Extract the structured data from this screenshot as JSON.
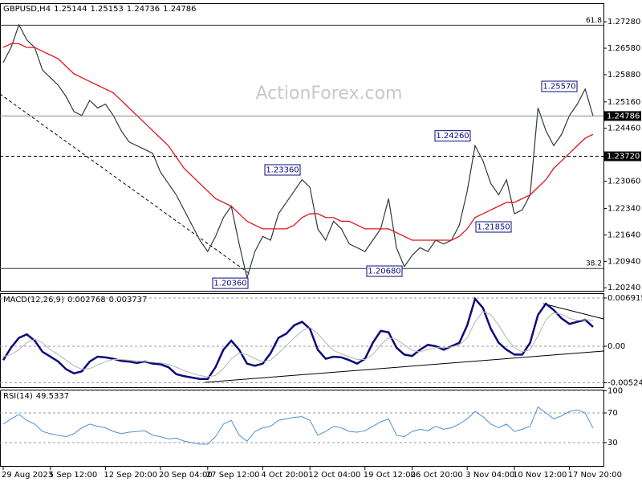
{
  "chart_data": [
    {
      "type": "line",
      "title": "GBPUSD,H4",
      "last_bar": {
        "open": 1.25144,
        "high": 1.25153,
        "low": 1.24736
      },
      "watermark": "ActionForex.com",
      "categories": [
        "29 Aug 2023",
        null,
        null,
        null,
        null,
        null,
        "5 Sep 12:00",
        null,
        null,
        null,
        null,
        null,
        null,
        "12 Sep 20:00",
        null,
        null,
        null,
        null,
        null,
        null,
        "20 Sep 04:00",
        null,
        null,
        null,
        null,
        null,
        "27 Sep 12:00",
        null,
        null,
        null,
        null,
        null,
        null,
        "4 Oct 20:00",
        null,
        null,
        null,
        null,
        null,
        "12 Oct 04:00",
        null,
        null,
        null,
        null,
        null,
        null,
        "19 Oct 12:00",
        null,
        null,
        null,
        null,
        null,
        "26 Oct 20:00",
        null,
        null,
        null,
        null,
        null,
        null,
        "3 Nov 04:00",
        null,
        null,
        null,
        null,
        null,
        "10 Nov 12:00",
        null,
        null,
        null,
        null,
        null,
        null,
        "17 Nov 20:00",
        null,
        null,
        null
      ],
      "series": [
        {
          "color": "#2f3b35",
          "values": [
            1.262,
            1.266,
            1.272,
            1.268,
            1.266,
            1.26,
            1.258,
            1.256,
            1.253,
            1.249,
            1.248,
            1.252,
            1.25,
            1.251,
            1.248,
            1.244,
            1.241,
            1.24,
            1.239,
            1.238,
            1.233,
            1.23,
            1.227,
            1.223,
            1.219,
            1.215,
            1.212,
            1.216,
            1.221,
            1.224,
            1.214,
            1.205,
            1.212,
            1.216,
            1.215,
            1.222,
            1.225,
            1.228,
            1.231,
            1.229,
            1.218,
            1.215,
            1.22,
            1.218,
            1.214,
            1.213,
            1.212,
            1.215,
            1.218,
            1.226,
            1.213,
            1.208,
            1.211,
            1.213,
            1.212,
            1.215,
            1.214,
            1.215,
            1.219,
            1.228,
            1.24,
            1.236,
            1.23,
            1.227,
            1.231,
            1.222,
            1.223,
            1.227,
            1.25,
            1.244,
            1.24,
            1.243,
            1.248,
            1.251,
            1.255,
            1.24786
          ]
        },
        {
          "color": "#e0141e",
          "values": [
            1.266,
            1.267,
            1.267,
            1.266,
            1.266,
            1.265,
            1.264,
            1.263,
            1.261,
            1.259,
            1.258,
            1.257,
            1.256,
            1.255,
            1.254,
            1.252,
            1.25,
            1.248,
            1.246,
            1.244,
            1.242,
            1.24,
            1.237,
            1.234,
            1.232,
            1.23,
            1.228,
            1.226,
            1.225,
            1.224,
            1.222,
            1.22,
            1.219,
            1.218,
            1.218,
            1.218,
            1.218,
            1.219,
            1.221,
            1.222,
            1.222,
            1.221,
            1.221,
            1.22,
            1.22,
            1.219,
            1.218,
            1.218,
            1.218,
            1.218,
            1.217,
            1.216,
            1.215,
            1.215,
            1.215,
            1.215,
            1.215,
            1.215,
            1.216,
            1.218,
            1.221,
            1.222,
            1.223,
            1.224,
            1.225,
            1.225,
            1.226,
            1.227,
            1.229,
            1.231,
            1.234,
            1.236,
            1.238,
            1.24,
            1.242,
            1.243
          ]
        }
      ],
      "ylim": [
        1.2016,
        1.2775
      ],
      "yticks": [
        {
          "value": 1.2728,
          "label": "1.27280"
        },
        {
          "value": 1.2658,
          "label": "1.26580"
        },
        {
          "value": 1.2588,
          "label": "1.25880"
        },
        {
          "value": 1.2516,
          "label": "1.25160"
        },
        {
          "value": 1.2446,
          "label": "1.24460"
        },
        {
          "value": 1.2306,
          "label": "1.23060"
        },
        {
          "value": 1.2234,
          "label": "1.22340"
        },
        {
          "value": 1.2164,
          "label": "1.21640"
        },
        {
          "value": 1.2094,
          "label": "1.20940"
        },
        {
          "value": 1.2024,
          "label": "1.20240"
        }
      ],
      "grid": false,
      "reference_line": {
        "value": 1.2372,
        "label": "1.23720"
      },
      "fib_levels": [
        {
          "value": 1.2719,
          "label": "61.8"
        },
        {
          "value": 1.2075,
          "label": "38.2"
        }
      ],
      "annotations": [
        {
          "value": 1.2036,
          "label": "1.20360"
        },
        {
          "value": 1.2336,
          "label": "1.23360"
        },
        {
          "value": 1.2426,
          "label": "1.24260"
        },
        {
          "value": 1.2185,
          "label": "1.21850"
        },
        {
          "value": 1.2068,
          "label": "1.20680"
        },
        {
          "value": 1.2557,
          "label": "1.25570"
        }
      ]
    },
    {
      "type": "line",
      "title": "MACD(12,26,9)",
      "series": [
        {
          "color": "#0b0b7a",
          "values": [
            -0.002,
            -0.0002,
            0.0012,
            0.0017,
            0.0008,
            -0.0008,
            -0.0015,
            -0.0022,
            -0.0033,
            -0.0039,
            -0.0036,
            -0.0022,
            -0.0015,
            -0.0016,
            -0.0018,
            -0.0021,
            -0.0022,
            -0.0024,
            -0.0022,
            -0.0025,
            -0.0026,
            -0.003,
            -0.004,
            -0.0043,
            -0.0045,
            -0.0047,
            -0.0047,
            -0.003,
            -0.0005,
            0.0008,
            -0.0005,
            -0.0025,
            -0.0028,
            -0.0025,
            -0.001,
            0.0012,
            0.0018,
            0.003,
            0.0035,
            0.0025,
            -0.0005,
            -0.0018,
            -0.0015,
            -0.0016,
            -0.002,
            -0.0025,
            -0.0018,
            0.0005,
            0.0022,
            0.002,
            -0.0002,
            -0.0012,
            -0.0014,
            -0.0005,
            0.0002,
            0.0,
            -0.0005,
            0.0,
            0.0005,
            0.003,
            0.0068,
            0.0055,
            0.0025,
            0.0005,
            -0.0005,
            -0.0012,
            -0.0012,
            0.0005,
            0.0045,
            0.0061,
            0.0052,
            0.004,
            0.0032,
            0.0035,
            0.0038,
            0.002768
          ]
        },
        {
          "color": "#b4b4b4",
          "values": [
            -0.0015,
            -0.0012,
            -0.0005,
            0.0005,
            0.001,
            0.0005,
            -0.0005,
            -0.0012,
            -0.002,
            -0.0028,
            -0.0033,
            -0.0032,
            -0.0027,
            -0.0022,
            -0.0019,
            -0.0019,
            -0.002,
            -0.0021,
            -0.0022,
            -0.0023,
            -0.0024,
            -0.0026,
            -0.003,
            -0.0035,
            -0.0039,
            -0.0042,
            -0.0044,
            -0.0042,
            -0.0032,
            -0.0018,
            -0.001,
            -0.0012,
            -0.0018,
            -0.0022,
            -0.002,
            -0.001,
            0.0001,
            0.0012,
            0.0022,
            0.0027,
            0.0018,
            0.0005,
            -0.0006,
            -0.0011,
            -0.0015,
            -0.0019,
            -0.0019,
            -0.0012,
            0.0002,
            0.0012,
            0.001,
            0.0002,
            -0.0006,
            -0.0008,
            -0.0005,
            -0.0002,
            -0.0002,
            -0.0001,
            0.0002,
            0.0012,
            0.0035,
            0.005,
            0.0045,
            0.003,
            0.0012,
            -0.0002,
            -0.0008,
            -0.0005,
            0.0015,
            0.0038,
            0.0048,
            0.0046,
            0.004,
            0.0037,
            0.0038,
            0.003737
          ]
        }
      ],
      "ylim": [
        -0.00588,
        0.00749
      ],
      "yticks": [
        0.006915,
        {
          "value": 0,
          "label": "0.00"
        },
        -0.005241
      ],
      "grid": true
    },
    {
      "type": "line",
      "title": "RSI(14)",
      "series": [
        {
          "color": "#4a90d9",
          "values": [
            55,
            62,
            68,
            60,
            55,
            45,
            42,
            40,
            38,
            42,
            50,
            55,
            52,
            50,
            45,
            42,
            44,
            45,
            46,
            40,
            38,
            35,
            36,
            32,
            30,
            28,
            28,
            38,
            55,
            60,
            40,
            32,
            45,
            50,
            52,
            60,
            62,
            64,
            65,
            60,
            40,
            45,
            52,
            50,
            45,
            44,
            46,
            52,
            58,
            62,
            40,
            38,
            45,
            48,
            46,
            52,
            48,
            50,
            55,
            62,
            72,
            65,
            55,
            50,
            55,
            45,
            48,
            52,
            78,
            70,
            62,
            66,
            72,
            74,
            70,
            49.5337
          ]
        }
      ],
      "ylim": [
        -1.4,
        100.3
      ],
      "yticks": [
        100,
        70,
        30
      ],
      "grid": true
    }
  ]
}
